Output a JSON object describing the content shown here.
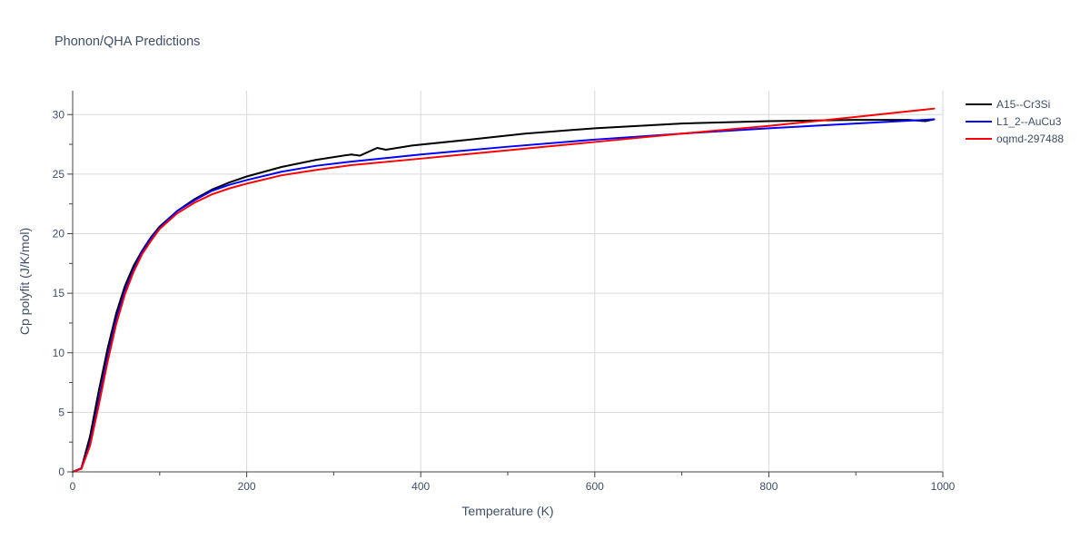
{
  "chart_data": {
    "type": "line",
    "title": "Phonon/QHA Predictions",
    "xlabel": "Temperature (K)",
    "ylabel": "Cp polyfit (J/K/mol)",
    "xlim": [
      0,
      1000
    ],
    "ylim": [
      0,
      32
    ],
    "xticks": [
      0,
      200,
      400,
      600,
      800,
      1000
    ],
    "yticks": [
      0,
      5,
      10,
      15,
      20,
      25,
      30
    ],
    "grid": true,
    "legend_position": "top-right",
    "series": [
      {
        "name": "A15--Cr3Si",
        "color": "#000000",
        "x": [
          0,
          10,
          20,
          30,
          40,
          50,
          60,
          70,
          80,
          90,
          100,
          120,
          140,
          160,
          180,
          200,
          240,
          280,
          320,
          330,
          350,
          360,
          390,
          450,
          520,
          600,
          700,
          800,
          900,
          960,
          980,
          990
        ],
        "y": [
          0,
          0.3,
          3.0,
          6.8,
          10.3,
          13.3,
          15.6,
          17.3,
          18.6,
          19.7,
          20.6,
          21.9,
          22.9,
          23.7,
          24.3,
          24.8,
          25.6,
          26.2,
          26.65,
          26.55,
          27.2,
          27.05,
          27.4,
          27.85,
          28.4,
          28.85,
          29.25,
          29.45,
          29.55,
          29.55,
          29.45,
          29.6
        ]
      },
      {
        "name": "L1_2--AuCu3",
        "color": "#0000ff",
        "x": [
          0,
          10,
          20,
          30,
          40,
          50,
          60,
          70,
          80,
          90,
          100,
          120,
          140,
          160,
          180,
          200,
          240,
          280,
          320,
          400,
          500,
          600,
          700,
          800,
          900,
          990
        ],
        "y": [
          0,
          0.3,
          2.4,
          6.0,
          9.6,
          12.8,
          15.2,
          17.0,
          18.5,
          19.6,
          20.5,
          21.9,
          22.8,
          23.6,
          24.1,
          24.5,
          25.2,
          25.7,
          26.05,
          26.65,
          27.3,
          27.9,
          28.4,
          28.85,
          29.25,
          29.6
        ]
      },
      {
        "name": "oqmd-297488",
        "color": "#ff0000",
        "x": [
          0,
          10,
          20,
          30,
          40,
          50,
          60,
          70,
          80,
          90,
          100,
          120,
          140,
          160,
          180,
          200,
          240,
          280,
          320,
          400,
          500,
          600,
          700,
          800,
          900,
          990
        ],
        "y": [
          0,
          0.25,
          2.2,
          5.6,
          9.2,
          12.4,
          14.9,
          16.8,
          18.3,
          19.4,
          20.4,
          21.7,
          22.6,
          23.3,
          23.8,
          24.2,
          24.9,
          25.35,
          25.75,
          26.3,
          27.0,
          27.7,
          28.4,
          29.05,
          29.8,
          30.5
        ]
      }
    ]
  }
}
